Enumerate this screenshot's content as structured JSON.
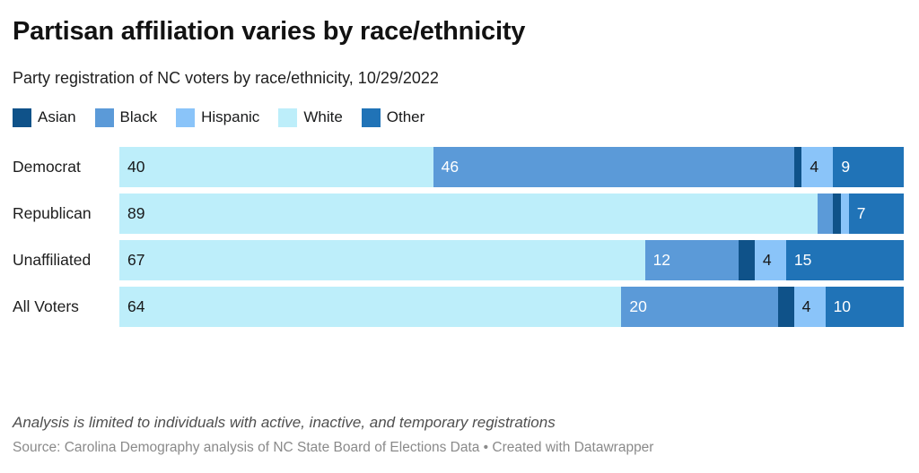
{
  "header": {
    "title": "Partisan affiliation varies by race/ethnicity",
    "subtitle": "Party registration of NC voters by race/ethnicity, 10/29/2022"
  },
  "chart_data": {
    "type": "bar",
    "variant": "stacked-horizontal",
    "title": "Partisan affiliation varies by race/ethnicity",
    "subtitle": "Party registration of NC voters by race/ethnicity, 10/29/2022",
    "xlim": [
      0,
      100
    ],
    "grid": false,
    "legend_position": "top",
    "legend_order": [
      "Asian",
      "Black",
      "Hispanic",
      "White",
      "Other"
    ],
    "stack_order": [
      "White",
      "Black",
      "Asian",
      "Hispanic",
      "Other"
    ],
    "categories": [
      "Democrat",
      "Republican",
      "Unaffiliated",
      "All Voters"
    ],
    "series": [
      {
        "name": "Asian",
        "color": "#0f5289",
        "label_color": "#ffffff",
        "values": [
          1,
          1,
          2,
          2
        ]
      },
      {
        "name": "Black",
        "color": "#5b9ad8",
        "label_color": "#ffffff",
        "values": [
          46,
          2,
          12,
          20
        ]
      },
      {
        "name": "Hispanic",
        "color": "#8ac4f9",
        "label_color": "#18191a",
        "values": [
          4,
          1,
          4,
          4
        ]
      },
      {
        "name": "White",
        "color": "#bdeefa",
        "label_color": "#18191a",
        "values": [
          40,
          89,
          67,
          64
        ]
      },
      {
        "name": "Other",
        "color": "#2073b7",
        "label_color": "#ffffff",
        "values": [
          9,
          7,
          15,
          10
        ]
      }
    ],
    "label_min_value": 4
  },
  "footer": {
    "note": "Analysis is limited to individuals with active, inactive, and temporary registrations",
    "source": "Source: Carolina Demography analysis of NC State Board of Elections Data • Created with Datawrapper"
  }
}
